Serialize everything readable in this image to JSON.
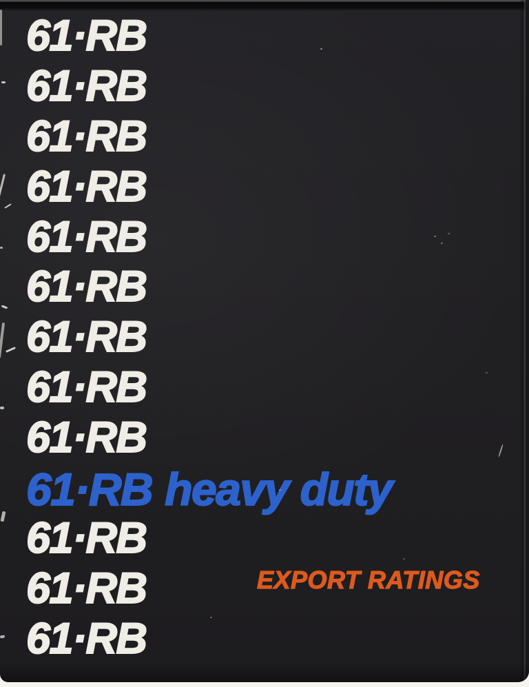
{
  "cover": {
    "rows": [
      {
        "label": "61·RB",
        "style": "white"
      },
      {
        "label": "61·RB",
        "style": "white"
      },
      {
        "label": "61·RB",
        "style": "white"
      },
      {
        "label": "61·RB",
        "style": "white"
      },
      {
        "label": "61·RB",
        "style": "white"
      },
      {
        "label": "61·RB",
        "style": "white"
      },
      {
        "label": "61·RB",
        "style": "white"
      },
      {
        "label": "61·RB",
        "style": "white"
      },
      {
        "label": "61·RB",
        "style": "white"
      },
      {
        "label": "61·RB",
        "suffix": "heavy duty",
        "style": "blue"
      },
      {
        "label": "61·RB",
        "style": "white"
      },
      {
        "label": "61·RB",
        "style": "white"
      },
      {
        "label": "61·RB",
        "style": "white"
      }
    ],
    "export_ratings": {
      "label": "EXPORT RATINGS"
    }
  },
  "colors": {
    "background": "#201f22",
    "text_white": "#efede6",
    "accent_blue": "#2d62cc",
    "accent_orange": "#dd5a1d",
    "page_edge": "#f6f4ef"
  }
}
